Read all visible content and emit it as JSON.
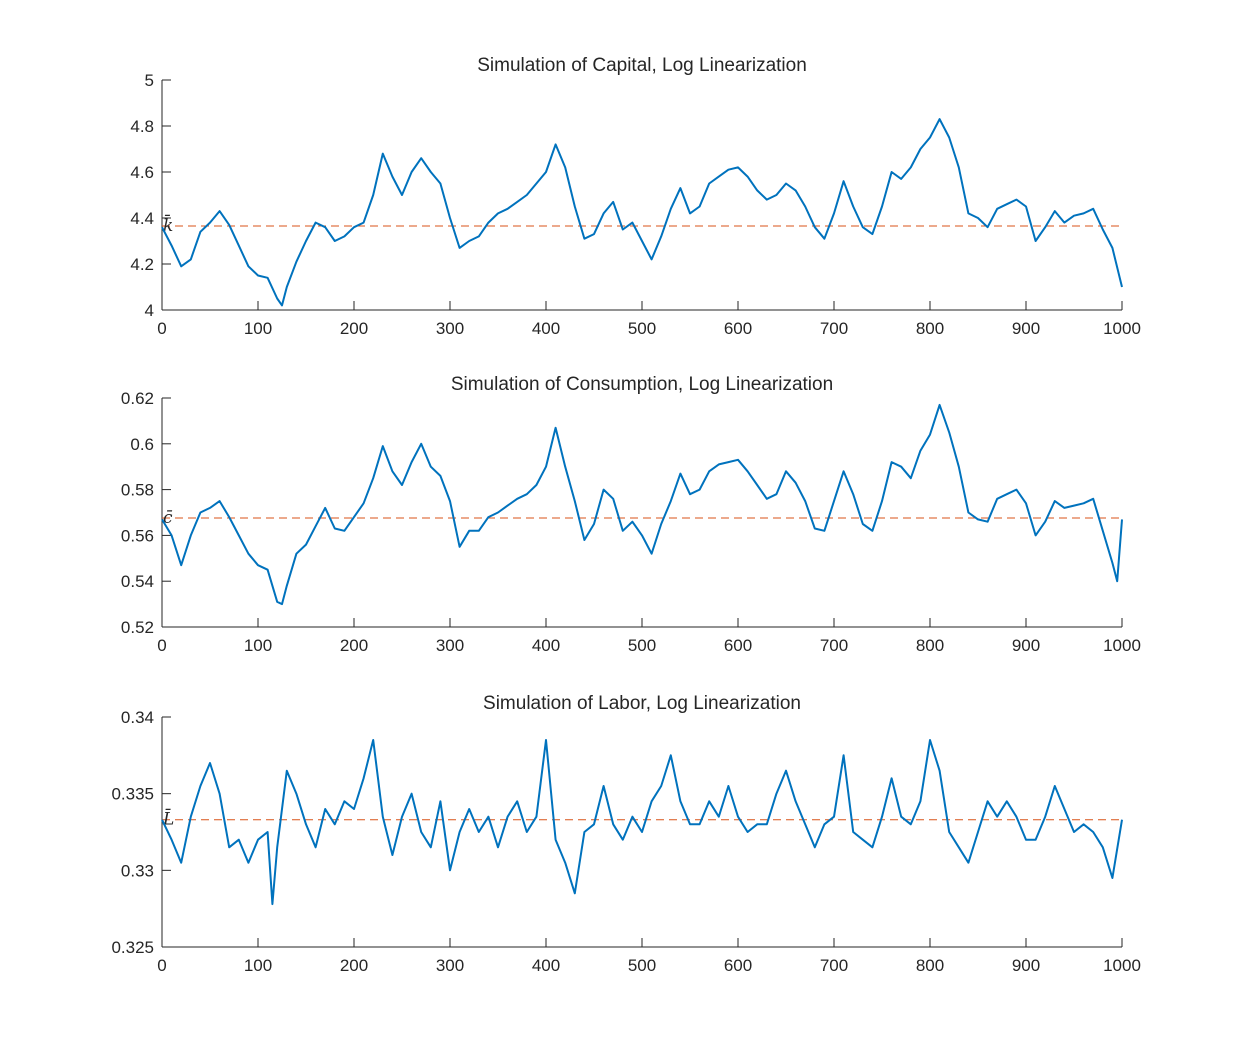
{
  "colors": {
    "series": "#0072BD",
    "steady_state": "#D95319",
    "axis": "#262626"
  },
  "chart_data": [
    {
      "type": "line",
      "title": "Simulation of Capital, Log Linearization",
      "xlim": [
        0,
        1000
      ],
      "ylim": [
        4,
        5
      ],
      "xticks": [
        0,
        100,
        200,
        300,
        400,
        500,
        600,
        700,
        800,
        900,
        1000
      ],
      "yticks": [
        4,
        4.2,
        4.4,
        4.6,
        4.8,
        5
      ],
      "ytick_labels": [
        "4",
        "4.2",
        "4.4",
        "4.6",
        "4.8",
        "5"
      ],
      "steady_state": {
        "label": "k̄",
        "value": 4.365
      },
      "grid": false,
      "x": [
        0,
        10,
        20,
        30,
        40,
        50,
        60,
        70,
        80,
        90,
        100,
        110,
        120,
        125,
        130,
        140,
        150,
        160,
        170,
        180,
        190,
        200,
        210,
        220,
        230,
        240,
        250,
        260,
        270,
        280,
        290,
        300,
        310,
        320,
        330,
        340,
        350,
        360,
        370,
        380,
        390,
        400,
        410,
        420,
        430,
        440,
        450,
        460,
        470,
        480,
        490,
        500,
        510,
        520,
        530,
        540,
        550,
        560,
        570,
        580,
        590,
        600,
        610,
        620,
        630,
        640,
        650,
        660,
        670,
        680,
        690,
        700,
        710,
        720,
        730,
        740,
        750,
        760,
        770,
        780,
        790,
        800,
        810,
        820,
        830,
        840,
        850,
        860,
        870,
        880,
        890,
        900,
        910,
        920,
        930,
        940,
        950,
        960,
        970,
        980,
        990,
        1000
      ],
      "y": [
        4.36,
        4.28,
        4.19,
        4.22,
        4.34,
        4.38,
        4.43,
        4.37,
        4.28,
        4.19,
        4.15,
        4.14,
        4.05,
        4.02,
        4.1,
        4.21,
        4.3,
        4.38,
        4.36,
        4.3,
        4.32,
        4.36,
        4.38,
        4.5,
        4.68,
        4.58,
        4.5,
        4.6,
        4.66,
        4.6,
        4.55,
        4.4,
        4.27,
        4.3,
        4.32,
        4.38,
        4.42,
        4.44,
        4.47,
        4.5,
        4.55,
        4.6,
        4.72,
        4.62,
        4.45,
        4.31,
        4.33,
        4.42,
        4.47,
        4.35,
        4.38,
        4.3,
        4.22,
        4.32,
        4.44,
        4.53,
        4.42,
        4.45,
        4.55,
        4.58,
        4.61,
        4.62,
        4.58,
        4.52,
        4.48,
        4.5,
        4.55,
        4.52,
        4.45,
        4.36,
        4.31,
        4.42,
        4.56,
        4.45,
        4.36,
        4.33,
        4.45,
        4.6,
        4.57,
        4.62,
        4.7,
        4.75,
        4.83,
        4.75,
        4.62,
        4.42,
        4.4,
        4.36,
        4.44,
        4.46,
        4.48,
        4.45,
        4.3,
        4.36,
        4.43,
        4.38,
        4.41,
        4.42,
        4.44,
        4.35,
        4.27,
        4.1
      ]
    },
    {
      "type": "line",
      "title": "Simulation of Consumption, Log Linearization",
      "xlim": [
        0,
        1000
      ],
      "ylim": [
        0.52,
        0.62
      ],
      "xticks": [
        0,
        100,
        200,
        300,
        400,
        500,
        600,
        700,
        800,
        900,
        1000
      ],
      "yticks": [
        0.52,
        0.54,
        0.56,
        0.58,
        0.6,
        0.62
      ],
      "ytick_labels": [
        "0.52",
        "0.54",
        "0.56",
        "0.58",
        "0.6",
        "0.62"
      ],
      "steady_state": {
        "label": "c̄",
        "value": 0.5676
      },
      "grid": false,
      "x": [
        0,
        10,
        20,
        30,
        40,
        50,
        60,
        70,
        80,
        90,
        100,
        110,
        120,
        125,
        130,
        140,
        150,
        160,
        170,
        180,
        190,
        200,
        210,
        220,
        230,
        240,
        250,
        260,
        270,
        280,
        290,
        300,
        310,
        320,
        330,
        340,
        350,
        360,
        370,
        380,
        390,
        400,
        410,
        420,
        430,
        440,
        450,
        460,
        470,
        480,
        490,
        500,
        510,
        520,
        530,
        540,
        550,
        560,
        570,
        580,
        590,
        600,
        610,
        620,
        630,
        640,
        650,
        660,
        670,
        680,
        690,
        700,
        710,
        720,
        730,
        740,
        750,
        760,
        770,
        780,
        790,
        800,
        810,
        820,
        830,
        840,
        850,
        860,
        870,
        880,
        890,
        900,
        910,
        920,
        930,
        940,
        950,
        960,
        970,
        980,
        990,
        995,
        1000
      ],
      "y": [
        0.567,
        0.56,
        0.547,
        0.56,
        0.57,
        0.572,
        0.575,
        0.568,
        0.56,
        0.552,
        0.547,
        0.545,
        0.531,
        0.53,
        0.538,
        0.552,
        0.556,
        0.564,
        0.572,
        0.563,
        0.562,
        0.568,
        0.574,
        0.585,
        0.599,
        0.588,
        0.582,
        0.592,
        0.6,
        0.59,
        0.586,
        0.575,
        0.555,
        0.562,
        0.562,
        0.568,
        0.57,
        0.573,
        0.576,
        0.578,
        0.582,
        0.59,
        0.607,
        0.59,
        0.575,
        0.558,
        0.565,
        0.58,
        0.576,
        0.562,
        0.566,
        0.56,
        0.552,
        0.565,
        0.575,
        0.587,
        0.578,
        0.58,
        0.588,
        0.591,
        0.592,
        0.593,
        0.588,
        0.582,
        0.576,
        0.578,
        0.588,
        0.583,
        0.575,
        0.563,
        0.562,
        0.575,
        0.588,
        0.578,
        0.565,
        0.562,
        0.575,
        0.592,
        0.59,
        0.585,
        0.597,
        0.604,
        0.617,
        0.605,
        0.59,
        0.57,
        0.567,
        0.566,
        0.576,
        0.578,
        0.58,
        0.574,
        0.56,
        0.566,
        0.575,
        0.572,
        0.573,
        0.574,
        0.576,
        0.562,
        0.548,
        0.54,
        0.567
      ]
    },
    {
      "type": "line",
      "title": "Simulation of Labor, Log Linearization",
      "xlim": [
        0,
        1000
      ],
      "ylim": [
        0.325,
        0.34
      ],
      "xticks": [
        0,
        100,
        200,
        300,
        400,
        500,
        600,
        700,
        800,
        900,
        1000
      ],
      "yticks": [
        0.325,
        0.33,
        0.335,
        0.34
      ],
      "ytick_labels": [
        "0.325",
        "0.33",
        "0.335",
        "0.34"
      ],
      "steady_state": {
        "label": "L̄",
        "value": 0.3333
      },
      "grid": false,
      "x": [
        0,
        10,
        20,
        30,
        40,
        50,
        60,
        70,
        80,
        90,
        100,
        110,
        115,
        120,
        130,
        140,
        150,
        160,
        170,
        180,
        190,
        200,
        210,
        220,
        230,
        240,
        250,
        260,
        270,
        280,
        290,
        300,
        310,
        320,
        330,
        340,
        350,
        360,
        370,
        380,
        390,
        400,
        410,
        420,
        430,
        440,
        450,
        460,
        470,
        480,
        490,
        500,
        510,
        520,
        530,
        540,
        550,
        560,
        570,
        580,
        590,
        600,
        610,
        620,
        630,
        640,
        650,
        660,
        670,
        680,
        690,
        700,
        710,
        720,
        730,
        740,
        750,
        760,
        770,
        780,
        790,
        800,
        810,
        820,
        830,
        840,
        850,
        860,
        870,
        880,
        890,
        900,
        910,
        920,
        930,
        940,
        950,
        960,
        970,
        980,
        990,
        1000
      ],
      "y": [
        0.3333,
        0.332,
        0.3305,
        0.3335,
        0.3355,
        0.337,
        0.335,
        0.3315,
        0.332,
        0.3305,
        0.332,
        0.3325,
        0.3278,
        0.3315,
        0.3365,
        0.335,
        0.333,
        0.3315,
        0.334,
        0.333,
        0.3345,
        0.334,
        0.336,
        0.3385,
        0.3335,
        0.331,
        0.3335,
        0.335,
        0.3325,
        0.3315,
        0.3345,
        0.33,
        0.3325,
        0.334,
        0.3325,
        0.3335,
        0.3315,
        0.3335,
        0.3345,
        0.3325,
        0.3335,
        0.3385,
        0.332,
        0.3305,
        0.3285,
        0.3325,
        0.333,
        0.3355,
        0.333,
        0.332,
        0.3335,
        0.3325,
        0.3345,
        0.3355,
        0.3375,
        0.3345,
        0.333,
        0.333,
        0.3345,
        0.3335,
        0.3355,
        0.3335,
        0.3325,
        0.333,
        0.333,
        0.335,
        0.3365,
        0.3345,
        0.333,
        0.3315,
        0.333,
        0.3335,
        0.3375,
        0.3325,
        0.332,
        0.3315,
        0.3335,
        0.336,
        0.3335,
        0.333,
        0.3345,
        0.3385,
        0.3365,
        0.3325,
        0.3315,
        0.3305,
        0.3325,
        0.3345,
        0.3335,
        0.3345,
        0.3335,
        0.332,
        0.332,
        0.3335,
        0.3355,
        0.334,
        0.3325,
        0.333,
        0.3325,
        0.3315,
        0.3295,
        0.3333
      ]
    }
  ]
}
